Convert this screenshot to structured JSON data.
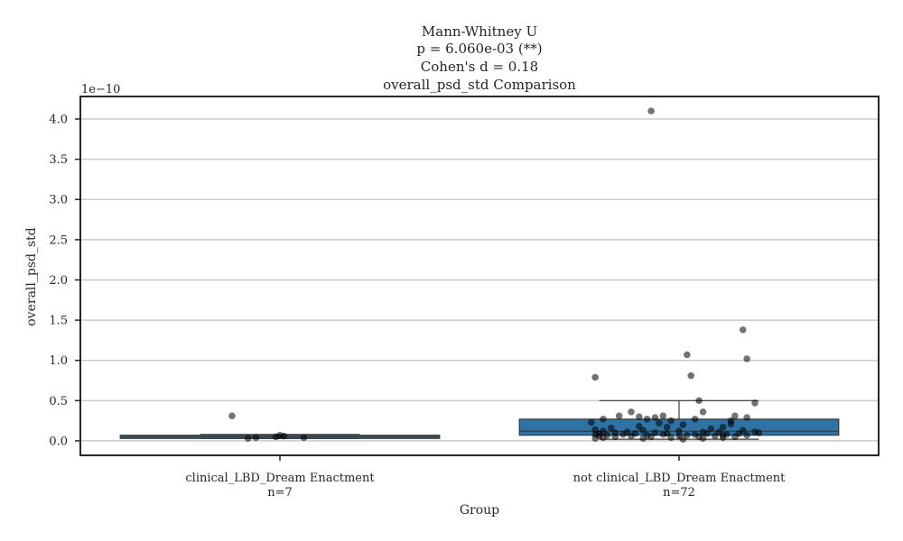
{
  "chart_data": {
    "type": "box",
    "title_lines": [
      "Mann-Whitney U",
      "p = 6.060e-03 (**)",
      "Cohen's d = 0.18",
      "overall_psd_std Comparison"
    ],
    "xlabel": "Group",
    "ylabel": "overall_psd_std",
    "y_offset_label": "1e−10",
    "y_scale_exponent": -10,
    "ylim": [
      -0.18,
      4.28
    ],
    "yticks": [
      0.0,
      0.5,
      1.0,
      1.5,
      2.0,
      2.5,
      3.0,
      3.5,
      4.0
    ],
    "ytick_labels": [
      "0.0",
      "0.5",
      "1.0",
      "1.5",
      "2.0",
      "2.5",
      "3.0",
      "3.5",
      "4.0"
    ],
    "grid": true,
    "box_color": "#2f72a6",
    "point_color": "#000000",
    "groups": [
      {
        "label": "clinical_LBD_Dream Enactment",
        "n_label": "n=7",
        "whisker_low": 0.03,
        "q1": 0.03,
        "median": 0.05,
        "q3": 0.07,
        "whisker_high": 0.08,
        "points": [
          [
            -0.12,
            0.31
          ],
          [
            -0.08,
            0.03
          ],
          [
            -0.06,
            0.04
          ],
          [
            -0.01,
            0.05
          ],
          [
            0.0,
            0.07
          ],
          [
            0.01,
            0.06
          ],
          [
            0.06,
            0.04
          ]
        ]
      },
      {
        "label": "not clinical_LBD_Dream Enactment",
        "n_label": "n=72",
        "whisker_low": 0.02,
        "q1": 0.07,
        "median": 0.12,
        "q3": 0.27,
        "whisker_high": 0.5,
        "points": [
          [
            -0.07,
            4.1
          ],
          [
            0.16,
            1.38
          ],
          [
            0.02,
            1.07
          ],
          [
            0.17,
            1.02
          ],
          [
            0.03,
            0.81
          ],
          [
            -0.21,
            0.79
          ],
          [
            0.05,
            0.5
          ],
          [
            0.19,
            0.47
          ],
          [
            0.06,
            0.36
          ],
          [
            -0.12,
            0.36
          ],
          [
            -0.15,
            0.31
          ],
          [
            -0.1,
            0.3
          ],
          [
            -0.04,
            0.31
          ],
          [
            -0.06,
            0.29
          ],
          [
            0.14,
            0.31
          ],
          [
            0.17,
            0.29
          ],
          [
            -0.19,
            0.27
          ],
          [
            -0.08,
            0.27
          ],
          [
            0.04,
            0.27
          ],
          [
            -0.02,
            0.25
          ],
          [
            0.13,
            0.25
          ],
          [
            -0.22,
            0.23
          ],
          [
            -0.05,
            0.22
          ],
          [
            0.13,
            0.21
          ],
          [
            0.01,
            0.2
          ],
          [
            -0.1,
            0.18
          ],
          [
            -0.03,
            0.17
          ],
          [
            0.11,
            0.17
          ],
          [
            -0.17,
            0.16
          ],
          [
            0.08,
            0.15
          ],
          [
            -0.21,
            0.14
          ],
          [
            -0.09,
            0.13
          ],
          [
            0.16,
            0.13
          ],
          [
            -0.19,
            0.12
          ],
          [
            -0.13,
            0.11
          ],
          [
            0.0,
            0.12
          ],
          [
            0.06,
            0.11
          ],
          [
            0.19,
            0.11
          ],
          [
            -0.16,
            0.1
          ],
          [
            -0.06,
            0.1
          ],
          [
            0.1,
            0.11
          ],
          [
            0.2,
            0.1
          ],
          [
            -0.2,
            0.09
          ],
          [
            -0.11,
            0.09
          ],
          [
            -0.03,
            0.09
          ],
          [
            0.07,
            0.09
          ],
          [
            0.15,
            0.09
          ],
          [
            -0.21,
            0.08
          ],
          [
            -0.14,
            0.08
          ],
          [
            -0.04,
            0.08
          ],
          [
            0.04,
            0.08
          ],
          [
            0.12,
            0.08
          ],
          [
            -0.18,
            0.07
          ],
          [
            -0.08,
            0.07
          ],
          [
            0.02,
            0.07
          ],
          [
            0.11,
            0.07
          ],
          [
            0.17,
            0.07
          ],
          [
            -0.2,
            0.06
          ],
          [
            -0.12,
            0.06
          ],
          [
            0.0,
            0.06
          ],
          [
            0.09,
            0.06
          ],
          [
            -0.16,
            0.05
          ],
          [
            -0.07,
            0.05
          ],
          [
            0.05,
            0.05
          ],
          [
            0.14,
            0.05
          ],
          [
            -0.19,
            0.04
          ],
          [
            -0.02,
            0.04
          ],
          [
            0.11,
            0.04
          ],
          [
            -0.21,
            0.03
          ],
          [
            -0.09,
            0.03
          ],
          [
            0.06,
            0.03
          ],
          [
            0.01,
            0.02
          ]
        ]
      }
    ]
  }
}
